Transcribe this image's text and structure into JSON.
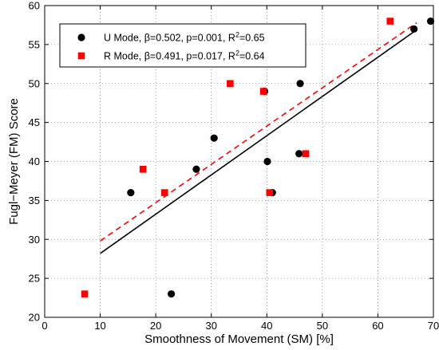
{
  "chart_data": {
    "type": "scatter",
    "title": "",
    "xlabel": "Smoothness of Movement (SM) [%]",
    "ylabel": "Fugl−Meyer (FM) Score",
    "xlim": [
      0,
      70
    ],
    "ylim": [
      20,
      60
    ],
    "xticks": [
      0,
      10,
      20,
      30,
      40,
      50,
      60,
      70
    ],
    "yticks": [
      20,
      25,
      30,
      35,
      40,
      45,
      50,
      55,
      60
    ],
    "grid": true,
    "legend_position": "top-left",
    "series": [
      {
        "name": "U Mode, β=0.502, p=0.001, R",
        "name_suffix": "=0.65",
        "superscript": "2",
        "marker": "circle",
        "color": "#000000",
        "points": [
          [
            15.5,
            36
          ],
          [
            22.8,
            23
          ],
          [
            27.3,
            39
          ],
          [
            30.5,
            43
          ],
          [
            39.6,
            49
          ],
          [
            40.1,
            40
          ],
          [
            41.0,
            36
          ],
          [
            45.8,
            41
          ],
          [
            46.0,
            50
          ],
          [
            66.5,
            57
          ],
          [
            69.5,
            58
          ]
        ],
        "fit": {
          "style": "solid",
          "x": [
            10,
            67
          ],
          "y": [
            28.2,
            56.9
          ]
        }
      },
      {
        "name": "R Mode, β=0.491, p=0.017, R",
        "name_suffix": "=0.64",
        "superscript": "2",
        "marker": "square",
        "color": "#ff0000",
        "points": [
          [
            7.2,
            23
          ],
          [
            17.7,
            39
          ],
          [
            21.6,
            36
          ],
          [
            33.4,
            50
          ],
          [
            39.4,
            49
          ],
          [
            40.5,
            36
          ],
          [
            47.0,
            41
          ],
          [
            62.2,
            58
          ]
        ],
        "fit": {
          "style": "dashed",
          "x": [
            10,
            67
          ],
          "y": [
            29.8,
            57.8
          ]
        }
      }
    ]
  }
}
